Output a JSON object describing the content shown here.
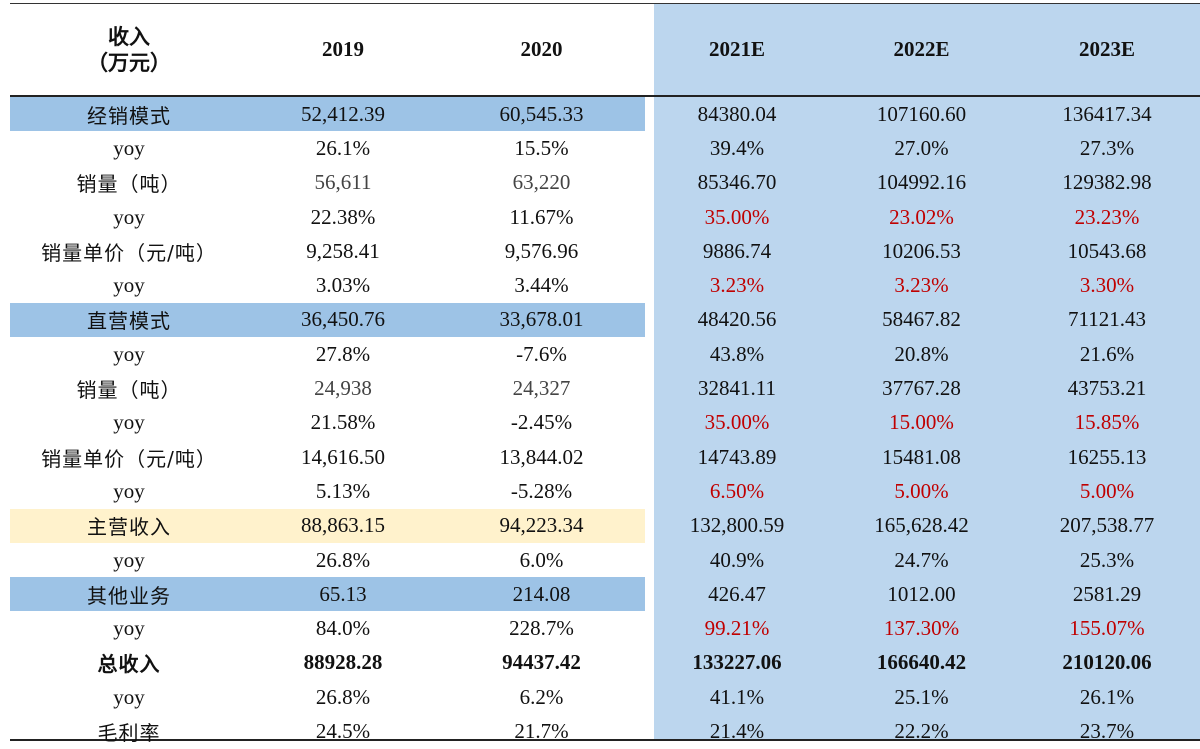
{
  "columns": {
    "corner_line1": "收入",
    "corner_line2": "（万元）",
    "years": [
      "2019",
      "2020",
      "2021E",
      "2022E",
      "2023E"
    ]
  },
  "colors": {
    "forecast_background": "#bcd6ee",
    "segment_highlight": "#9dc3e6",
    "main_revenue_highlight": "#fff2cc",
    "forecast_red": "#c00000"
  },
  "rows": [
    {
      "label": "经销模式",
      "kind": "segment-blue",
      "values": [
        "52,412.39",
        "60,545.33",
        "84380.04",
        "107160.60",
        "136417.34"
      ]
    },
    {
      "label": "yoy",
      "kind": "yoy",
      "values": [
        "26.1%",
        "15.5%",
        "39.4%",
        "27.0%",
        "27.3%"
      ]
    },
    {
      "label": "销量（吨）",
      "kind": "volume",
      "values": [
        "56,611",
        "63,220",
        "85346.70",
        "104992.16",
        "129382.98"
      ]
    },
    {
      "label": "yoy",
      "kind": "yoy-red",
      "values": [
        "22.38%",
        "11.67%",
        "35.00%",
        "23.02%",
        "23.23%"
      ]
    },
    {
      "label": "销量单价（元/吨）",
      "kind": "plain",
      "values": [
        "9,258.41",
        "9,576.96",
        "9886.74",
        "10206.53",
        "10543.68"
      ]
    },
    {
      "label": "yoy",
      "kind": "yoy-red",
      "values": [
        "3.03%",
        "3.44%",
        "3.23%",
        "3.23%",
        "3.30%"
      ]
    },
    {
      "label": "直营模式",
      "kind": "segment-blue",
      "values": [
        "36,450.76",
        "33,678.01",
        "48420.56",
        "58467.82",
        "71121.43"
      ]
    },
    {
      "label": "yoy",
      "kind": "yoy",
      "values": [
        "27.8%",
        "-7.6%",
        "43.8%",
        "20.8%",
        "21.6%"
      ]
    },
    {
      "label": "销量（吨）",
      "kind": "volume",
      "values": [
        "24,938",
        "24,327",
        "32841.11",
        "37767.28",
        "43753.21"
      ]
    },
    {
      "label": "yoy",
      "kind": "yoy-red",
      "values": [
        "21.58%",
        "-2.45%",
        "35.00%",
        "15.00%",
        "15.85%"
      ]
    },
    {
      "label": "销量单价（元/吨）",
      "kind": "plain",
      "values": [
        "14,616.50",
        "13,844.02",
        "14743.89",
        "15481.08",
        "16255.13"
      ]
    },
    {
      "label": "yoy",
      "kind": "yoy-red",
      "values": [
        "5.13%",
        "-5.28%",
        "6.50%",
        "5.00%",
        "5.00%"
      ]
    },
    {
      "label": "主营收入",
      "kind": "segment-yellow",
      "values": [
        "88,863.15",
        "94,223.34",
        "132,800.59",
        "165,628.42",
        "207,538.77"
      ]
    },
    {
      "label": "yoy",
      "kind": "yoy",
      "values": [
        "26.8%",
        "6.0%",
        "40.9%",
        "24.7%",
        "25.3%"
      ]
    },
    {
      "label": "其他业务",
      "kind": "segment-blue",
      "values": [
        "65.13",
        "214.08",
        "426.47",
        "1012.00",
        "2581.29"
      ]
    },
    {
      "label": "yoy",
      "kind": "yoy-red",
      "values": [
        "84.0%",
        "228.7%",
        "99.21%",
        "137.30%",
        "155.07%"
      ]
    },
    {
      "label": "总收入",
      "kind": "total",
      "values": [
        "88928.28",
        "94437.42",
        "133227.06",
        "166640.42",
        "210120.06"
      ]
    },
    {
      "label": "yoy",
      "kind": "yoy",
      "values": [
        "26.8%",
        "6.2%",
        "41.1%",
        "25.1%",
        "26.1%"
      ]
    },
    {
      "label": "毛利率",
      "kind": "plain",
      "values": [
        "24.5%",
        "21.7%",
        "21.4%",
        "22.2%",
        "23.7%"
      ]
    }
  ]
}
